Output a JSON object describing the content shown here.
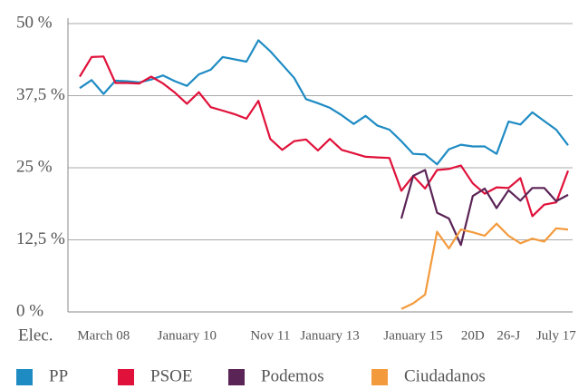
{
  "chart_data": {
    "type": "line",
    "x_label": "Elec.",
    "categories": [
      null,
      null,
      "March 08",
      null,
      null,
      null,
      null,
      null,
      null,
      "January 10",
      null,
      null,
      null,
      null,
      null,
      null,
      "Nov 11",
      null,
      null,
      null,
      null,
      "January 13",
      null,
      null,
      null,
      null,
      null,
      null,
      "January 15",
      null,
      null,
      null,
      null,
      "20D",
      null,
      null,
      "26-J",
      null,
      null,
      null,
      "July 17",
      null
    ],
    "ylim": [
      0,
      50
    ],
    "yticks": [
      {
        "value": 0,
        "label": "0 %"
      },
      {
        "value": 12.5,
        "label": "12,5 %"
      },
      {
        "value": 25,
        "label": "25 %"
      },
      {
        "value": 37.5,
        "label": "37,5 %"
      },
      {
        "value": 50,
        "label": "50 %"
      }
    ],
    "grid": true,
    "legend": "bottom",
    "series": [
      {
        "name": "PP",
        "color": "#1e8bc3",
        "values": [
          38.8,
          40.2,
          37.8,
          40.1,
          40.0,
          39.8,
          40.3,
          41.0,
          40.0,
          39.2,
          41.2,
          42.0,
          44.2,
          43.8,
          43.4,
          47.1,
          45.2,
          42.9,
          40.6,
          36.9,
          36.2,
          35.4,
          34.1,
          32.6,
          34.0,
          32.3,
          31.6,
          29.6,
          27.4,
          27.3,
          25.6,
          28.2,
          29.0,
          28.7,
          28.7,
          27.4,
          33.0,
          32.5,
          34.6,
          33.1,
          31.6,
          28.9
        ]
      },
      {
        "name": "PSOE",
        "color": "#e0113a",
        "values": [
          40.8,
          44.2,
          44.3,
          39.7,
          39.7,
          39.6,
          40.8,
          39.6,
          38.0,
          36.1,
          38.1,
          35.5,
          34.9,
          34.3,
          33.5,
          36.6,
          30.0,
          28.1,
          29.6,
          29.9,
          28.0,
          30.0,
          28.1,
          27.5,
          26.9,
          26.8,
          26.7,
          21.0,
          23.6,
          21.4,
          24.6,
          24.8,
          25.4,
          22.3,
          20.5,
          21.6,
          21.5,
          23.2,
          16.6,
          18.6,
          19.0,
          24.5
        ]
      },
      {
        "name": "Podemos",
        "color": "#5b2456",
        "values": [
          null,
          null,
          null,
          null,
          null,
          null,
          null,
          null,
          null,
          null,
          null,
          null,
          null,
          null,
          null,
          null,
          null,
          null,
          null,
          null,
          null,
          null,
          null,
          null,
          null,
          null,
          null,
          16.2,
          23.6,
          24.6,
          17.2,
          16.2,
          11.6,
          20.1,
          21.4,
          18.0,
          21.1,
          19.3,
          21.5,
          21.5,
          19.2,
          20.3
        ]
      },
      {
        "name": "Ciudadanos",
        "color": "#f39a3c",
        "values": [
          null,
          null,
          null,
          null,
          null,
          null,
          null,
          null,
          null,
          null,
          null,
          null,
          null,
          null,
          null,
          null,
          null,
          null,
          null,
          null,
          null,
          null,
          null,
          null,
          null,
          null,
          null,
          0.5,
          1.5,
          3.0,
          13.9,
          11.0,
          14.3,
          13.8,
          13.2,
          15.3,
          13.2,
          11.9,
          12.7,
          12.2,
          14.5,
          14.3
        ]
      }
    ]
  }
}
